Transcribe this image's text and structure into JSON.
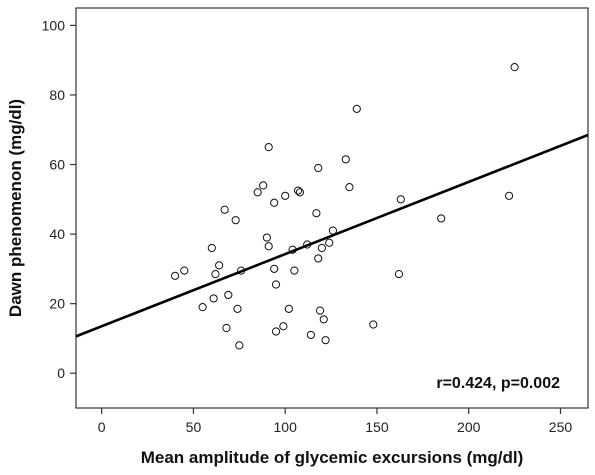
{
  "chart_data": {
    "type": "scatter",
    "title": "",
    "xlabel": "Mean amplitude of glycemic excursions (mg/dl)",
    "ylabel": "Dawn phenomenon (mg/dl)",
    "xlim": [
      -14,
      265
    ],
    "ylim": [
      -10,
      105
    ],
    "xticks": [
      0,
      50,
      100,
      150,
      200,
      250
    ],
    "yticks": [
      0,
      20,
      40,
      60,
      80,
      100
    ],
    "grid": false,
    "legend": "none",
    "annotation": "r=0.424,  p=0.002",
    "regression_line": {
      "intercept": 13.5,
      "slope": 0.2075
    },
    "points": [
      [
        40,
        28
      ],
      [
        45,
        29.5
      ],
      [
        55,
        19
      ],
      [
        60,
        36
      ],
      [
        61,
        21.5
      ],
      [
        62,
        28.5
      ],
      [
        64,
        31
      ],
      [
        67,
        47
      ],
      [
        68,
        13
      ],
      [
        69,
        22.5
      ],
      [
        73,
        44
      ],
      [
        74,
        18.5
      ],
      [
        75,
        8
      ],
      [
        76,
        29.5
      ],
      [
        85,
        52
      ],
      [
        88,
        54
      ],
      [
        90,
        39
      ],
      [
        91,
        36.5
      ],
      [
        91,
        65
      ],
      [
        94,
        49
      ],
      [
        94,
        30
      ],
      [
        95,
        12
      ],
      [
        95,
        25.5
      ],
      [
        99,
        13.5
      ],
      [
        100,
        51
      ],
      [
        102,
        18.5
      ],
      [
        104,
        35.5
      ],
      [
        105,
        29.5
      ],
      [
        107,
        52.5
      ],
      [
        108,
        52
      ],
      [
        112,
        37
      ],
      [
        114,
        11
      ],
      [
        117,
        46
      ],
      [
        118,
        59
      ],
      [
        118,
        33
      ],
      [
        119,
        18
      ],
      [
        120,
        36
      ],
      [
        121,
        15.5
      ],
      [
        122,
        9.5
      ],
      [
        124,
        37.5
      ],
      [
        126,
        41
      ],
      [
        133,
        61.5
      ],
      [
        135,
        53.5
      ],
      [
        139,
        76
      ],
      [
        148,
        14
      ],
      [
        162,
        28.5
      ],
      [
        163,
        50
      ],
      [
        185,
        44.5
      ],
      [
        222,
        51
      ],
      [
        225,
        88
      ]
    ]
  }
}
